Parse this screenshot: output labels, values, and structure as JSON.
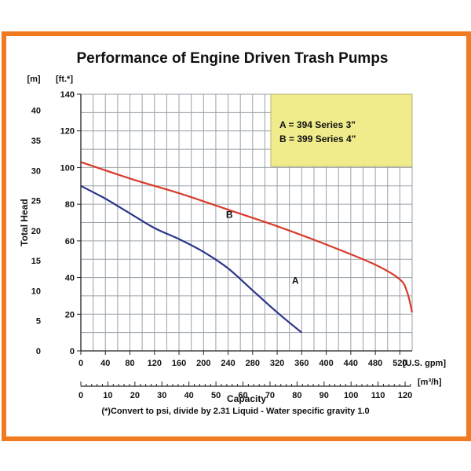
{
  "chart_data": {
    "type": "line",
    "title": "Performance of Engine Driven Trash Pumps",
    "xlabel": "Capacity",
    "ylabel": "Total Head",
    "x_unit": "[U.S. gpm]",
    "x2_unit": "[m³/h]",
    "y_unit_ft": "[ft.*]",
    "y_unit_m": "[m]",
    "xlim": [
      0,
      540
    ],
    "ylim": [
      0,
      140
    ],
    "x2lim": [
      0,
      122.6
    ],
    "y2lim": [
      0,
      42.7
    ],
    "grid": true,
    "x_ticks": [
      0,
      40,
      80,
      120,
      160,
      200,
      240,
      280,
      320,
      360,
      400,
      440,
      480,
      520
    ],
    "x2_ticks": [
      0,
      10,
      20,
      30,
      40,
      50,
      60,
      70,
      80,
      90,
      100,
      110,
      120
    ],
    "y_ticks": [
      0,
      20,
      40,
      60,
      80,
      100,
      120,
      140
    ],
    "y2_ticks": [
      0,
      5,
      10,
      15,
      20,
      25,
      30,
      35,
      40
    ],
    "series": [
      {
        "name": "A",
        "color": "#2c3589",
        "x": [
          0,
          40,
          80,
          120,
          160,
          200,
          240,
          280,
          320,
          360
        ],
        "y": [
          90,
          83,
          75,
          67,
          61,
          54,
          45,
          33,
          21,
          10
        ]
      },
      {
        "name": "B",
        "color": "#d93a2b",
        "x": [
          0,
          80,
          160,
          240,
          320,
          400,
          480,
          520,
          532,
          540
        ],
        "y": [
          103,
          94,
          86,
          77,
          68,
          58,
          47,
          39,
          32,
          21
        ]
      }
    ],
    "legend": {
      "position": "top-right",
      "lines": [
        "A = 394 Series 3\"",
        "B = 399 Series 4\""
      ]
    },
    "footnote": "(*)Convert to psi, divide by 2.31     Liquid - Water specific gravity 1.0"
  },
  "colors": {
    "frame": "#f07a20",
    "legend_bg": "#f0ec8c",
    "grid": "#9aa0a8"
  }
}
